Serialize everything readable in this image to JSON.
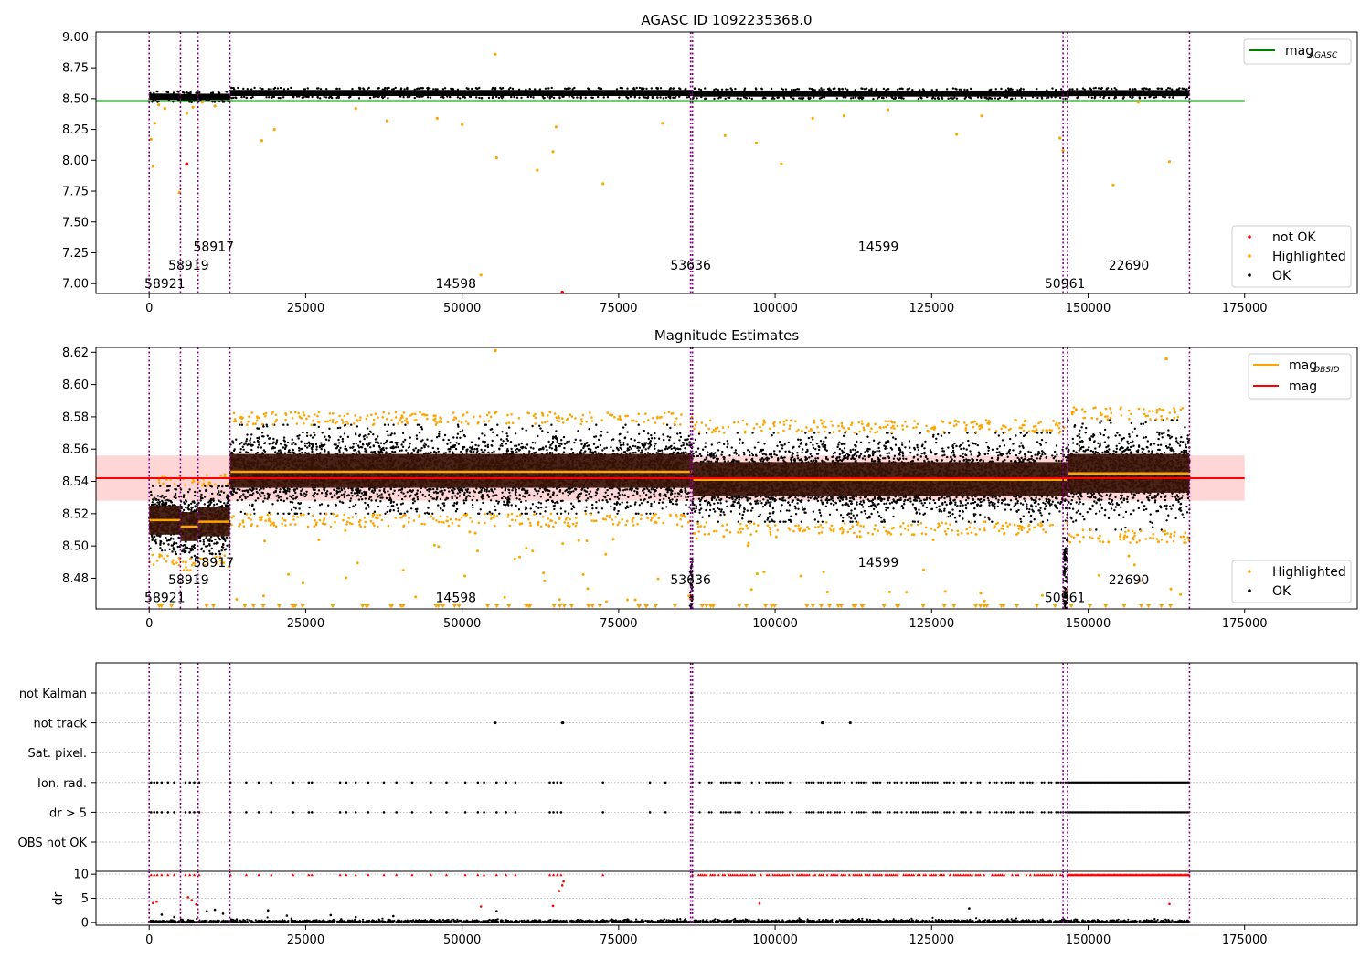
{
  "panels": {
    "top": {
      "title": "AGASC ID 1092235368.0"
    },
    "middle": {
      "title": "Magnitude Estimates"
    },
    "flags": {
      "title": ""
    },
    "dr": {
      "title": "",
      "ylabel": "dr"
    }
  },
  "colors": {
    "ok": "#000000",
    "highlighted": "#ffa500",
    "not_ok": "#ff0000",
    "mag_agasc": "#008000",
    "mag_obsid": "#ffa500",
    "mag": "#ff0000",
    "band": "#ffd6d6",
    "obs_line": "#800080"
  },
  "chart_data": [
    {
      "panel": "top",
      "type": "scatter",
      "title": "AGASC ID 1092235368.0",
      "xlim": [
        -8500,
        193000
      ],
      "ylim": [
        6.92,
        9.04
      ],
      "xticks": [
        0,
        25000,
        50000,
        75000,
        100000,
        125000,
        150000,
        175000
      ],
      "xticklabels": [
        "0",
        "25000",
        "50000",
        "75000",
        "100000",
        "125000",
        "150000",
        "175000"
      ],
      "yticks": [
        7.0,
        7.25,
        7.5,
        7.75,
        8.0,
        8.25,
        8.5,
        8.75,
        9.0
      ],
      "yticklabels": [
        "7.00",
        "7.25",
        "7.50",
        "7.75",
        "8.00",
        "8.25",
        "8.50",
        "8.75",
        "9.00"
      ],
      "legend_upper": {
        "position": "top-right",
        "entries": [
          {
            "label": "mag",
            "subscript": "AGASC",
            "color": "#008000",
            "kind": "line"
          }
        ]
      },
      "legend_lower": {
        "position": "bottom-right",
        "entries": [
          {
            "label": "not OK",
            "color": "#ff0000",
            "kind": "dot"
          },
          {
            "label": "Highlighted",
            "color": "#ffa500",
            "kind": "dot"
          },
          {
            "label": "OK",
            "color": "#000000",
            "kind": "dot"
          }
        ]
      },
      "mag_agasc": 8.48,
      "mag_agasc_xrange": [
        -8500,
        175000
      ],
      "segments": [
        {
          "x0": 0,
          "x1": 5000,
          "level": 8.516
        },
        {
          "x0": 5000,
          "x1": 7800,
          "level": 8.512
        },
        {
          "x0": 7800,
          "x1": 12900,
          "level": 8.515
        },
        {
          "x0": 12900,
          "x1": 86800,
          "level": 8.546
        },
        {
          "x0": 86800,
          "x1": 146700,
          "level": 8.541
        },
        {
          "x0": 146700,
          "x1": 166200,
          "level": 8.545
        }
      ],
      "obs_lines": [
        0,
        5000,
        7800,
        12900,
        86500,
        86800,
        146000,
        146700,
        166200
      ],
      "obsid_labels": [
        {
          "text": "58921",
          "x": 2500,
          "y": 7.0
        },
        {
          "text": "58919",
          "x": 6300,
          "y": 7.15
        },
        {
          "text": "58917",
          "x": 10300,
          "y": 7.3
        },
        {
          "text": "14598",
          "x": 49000,
          "y": 7.0
        },
        {
          "text": "53636",
          "x": 86500,
          "y": 7.15
        },
        {
          "text": "14599",
          "x": 116500,
          "y": 7.3
        },
        {
          "text": "50961",
          "x": 146300,
          "y": 7.0
        },
        {
          "text": "22690",
          "x": 156500,
          "y": 7.15
        }
      ],
      "outliers_highlighted": [
        [
          300,
          8.17
        ],
        [
          600,
          7.95
        ],
        [
          900,
          8.3
        ],
        [
          1500,
          8.45
        ],
        [
          2500,
          8.42
        ],
        [
          4800,
          7.74
        ],
        [
          6000,
          8.38
        ],
        [
          7000,
          8.43
        ],
        [
          8500,
          8.47
        ],
        [
          10500,
          8.44
        ],
        [
          18000,
          8.16
        ],
        [
          20000,
          8.25
        ],
        [
          33000,
          8.42
        ],
        [
          38000,
          8.32
        ],
        [
          46000,
          8.34
        ],
        [
          50000,
          8.29
        ],
        [
          53000,
          7.07
        ],
        [
          55300,
          8.86
        ],
        [
          55500,
          8.02
        ],
        [
          62000,
          7.92
        ],
        [
          64500,
          8.07
        ],
        [
          65000,
          8.27
        ],
        [
          72500,
          7.81
        ],
        [
          82000,
          8.3
        ],
        [
          92000,
          8.2
        ],
        [
          97000,
          8.14
        ],
        [
          101000,
          7.97
        ],
        [
          106000,
          8.34
        ],
        [
          111000,
          8.36
        ],
        [
          118000,
          8.41
        ],
        [
          129000,
          8.21
        ],
        [
          133000,
          8.36
        ],
        [
          145500,
          8.18
        ],
        [
          146000,
          8.08
        ],
        [
          154000,
          7.8
        ],
        [
          163000,
          7.99
        ],
        [
          158000,
          8.47
        ]
      ],
      "outliers_not_ok": [
        [
          6000,
          7.97
        ],
        [
          66000,
          6.93
        ]
      ]
    },
    {
      "panel": "middle",
      "type": "scatter",
      "title": "Magnitude Estimates",
      "xlim": [
        -8500,
        193000
      ],
      "ylim": [
        8.461,
        8.623
      ],
      "xticks": [
        0,
        25000,
        50000,
        75000,
        100000,
        125000,
        150000,
        175000
      ],
      "xticklabels": [
        "0",
        "25000",
        "50000",
        "75000",
        "100000",
        "125000",
        "150000",
        "175000"
      ],
      "yticks": [
        8.48,
        8.5,
        8.52,
        8.54,
        8.56,
        8.58,
        8.6,
        8.62
      ],
      "yticklabels": [
        "8.48",
        "8.50",
        "8.52",
        "8.54",
        "8.56",
        "8.58",
        "8.60",
        "8.62"
      ],
      "legend_upper": {
        "position": "top-right",
        "entries": [
          {
            "label": "mag",
            "subscript": "OBSID",
            "color": "#ffa500",
            "kind": "line"
          },
          {
            "label": "mag",
            "subscript": "",
            "color": "#ff0000",
            "kind": "line"
          }
        ]
      },
      "legend_lower": {
        "position": "bottom-right",
        "entries": [
          {
            "label": "Highlighted",
            "color": "#ffa500",
            "kind": "dot"
          },
          {
            "label": "OK",
            "color": "#000000",
            "kind": "dot"
          }
        ]
      },
      "mag": 8.542,
      "mag_band": [
        8.528,
        8.556
      ],
      "mag_xrange": [
        -8500,
        175000
      ],
      "segments": [
        {
          "x0": 0,
          "x1": 5000,
          "mean": 8.516,
          "lo": 8.507,
          "hi": 8.525,
          "min": 8.495,
          "max": 8.537
        },
        {
          "x0": 5000,
          "x1": 7800,
          "mean": 8.512,
          "lo": 8.503,
          "hi": 8.521,
          "min": 8.493,
          "max": 8.535
        },
        {
          "x0": 7800,
          "x1": 12900,
          "mean": 8.515,
          "lo": 8.506,
          "hi": 8.524,
          "min": 8.495,
          "max": 8.537
        },
        {
          "x0": 12900,
          "x1": 86800,
          "mean": 8.546,
          "lo": 8.536,
          "hi": 8.557,
          "min": 8.52,
          "max": 8.575
        },
        {
          "x0": 86800,
          "x1": 146700,
          "mean": 8.541,
          "lo": 8.531,
          "hi": 8.552,
          "min": 8.515,
          "max": 8.57
        },
        {
          "x0": 146700,
          "x1": 166200,
          "mean": 8.545,
          "lo": 8.533,
          "hi": 8.557,
          "min": 8.51,
          "max": 8.578
        }
      ],
      "obs_lines": [
        0,
        5000,
        7800,
        12900,
        86500,
        86800,
        146000,
        146700,
        166200
      ],
      "obsid_labels": [
        {
          "text": "58921",
          "x": 2500,
          "y": 8.468
        },
        {
          "text": "58919",
          "x": 6300,
          "y": 8.479
        },
        {
          "text": "58917",
          "x": 10300,
          "y": 8.49
        },
        {
          "text": "14598",
          "x": 49000,
          "y": 8.468
        },
        {
          "text": "53636",
          "x": 86500,
          "y": 8.479
        },
        {
          "text": "14599",
          "x": 116500,
          "y": 8.49
        },
        {
          "text": "50961",
          "x": 146300,
          "y": 8.468
        },
        {
          "text": "22690",
          "x": 156500,
          "y": 8.479
        }
      ]
    },
    {
      "panel": "flags",
      "type": "scatter",
      "xlim": [
        -8500,
        193000
      ],
      "categories": [
        "not Kalman",
        "not track",
        "Sat. pixel.",
        "Ion. rad.",
        "dr > 5",
        "OBS not OK"
      ],
      "obs_lines": [
        0,
        5000,
        7800,
        12900,
        86500,
        86800,
        146000,
        146700,
        166200
      ],
      "not_track_points": [
        55300,
        66000,
        66100,
        107500,
        107600,
        112000
      ],
      "not_kalman_points": [
        86600
      ],
      "ion_rad_sparse": [
        300,
        800,
        1300,
        2000,
        3000,
        4000,
        5800,
        6500,
        7200,
        8000,
        13000,
        15500,
        17500,
        19500,
        23000,
        25500,
        26000,
        30500,
        31500,
        33000,
        35000,
        37500,
        39500,
        42000,
        45000,
        47500,
        50500,
        52500,
        53500,
        55500,
        57000,
        58500,
        64000,
        64600,
        65200,
        65800,
        72500,
        80000,
        82500
      ],
      "ion_rad_dense_ranges": [
        [
          86800,
          146700
        ],
        [
          146700,
          166200
        ]
      ]
    },
    {
      "panel": "dr",
      "type": "scatter",
      "ylabel": "dr",
      "xlim": [
        -8500,
        193000
      ],
      "ylim": [
        -0.6,
        10.6
      ],
      "xticks": [
        0,
        25000,
        50000,
        75000,
        100000,
        125000,
        150000,
        175000
      ],
      "xticklabels": [
        "0",
        "25000",
        "50000",
        "75000",
        "100000",
        "125000",
        "150000",
        "175000"
      ],
      "yticks": [
        0,
        5,
        10
      ],
      "yticklabels": [
        "0",
        "5",
        "10"
      ],
      "obs_lines": [
        0,
        5000,
        7800,
        12900,
        86500,
        86800,
        146000,
        146700,
        166200
      ],
      "dr_scatter": [
        [
          600,
          4.0
        ],
        [
          1200,
          4.3
        ],
        [
          2000,
          1.6
        ],
        [
          4000,
          1.1
        ],
        [
          6200,
          5.2
        ],
        [
          6800,
          4.6
        ],
        [
          7500,
          3.7
        ],
        [
          9200,
          2.3
        ],
        [
          10500,
          2.6
        ],
        [
          11800,
          1.8
        ],
        [
          19000,
          2.5
        ],
        [
          22000,
          1.4
        ],
        [
          29000,
          1.5
        ],
        [
          33000,
          1.1
        ],
        [
          39000,
          1.3
        ],
        [
          53000,
          3.3
        ],
        [
          55500,
          2.3
        ],
        [
          64500,
          3.4
        ],
        [
          65500,
          6.5
        ],
        [
          66000,
          7.7
        ],
        [
          66200,
          8.5
        ],
        [
          97500,
          3.9
        ],
        [
          131000,
          2.9
        ],
        [
          163000,
          3.8
        ]
      ],
      "dr_top_sparse": [
        300,
        800,
        1300,
        2000,
        3000,
        4000,
        5800,
        6500,
        7200,
        8000,
        13000,
        15500,
        17500,
        19500,
        23000,
        25500,
        26000,
        30500,
        31500,
        33000,
        35000,
        37500,
        39500,
        42000,
        45000,
        47500,
        50500,
        52500,
        53500,
        55500,
        57000,
        58500,
        64000,
        64600,
        65200,
        65800,
        72500
      ]
    }
  ]
}
